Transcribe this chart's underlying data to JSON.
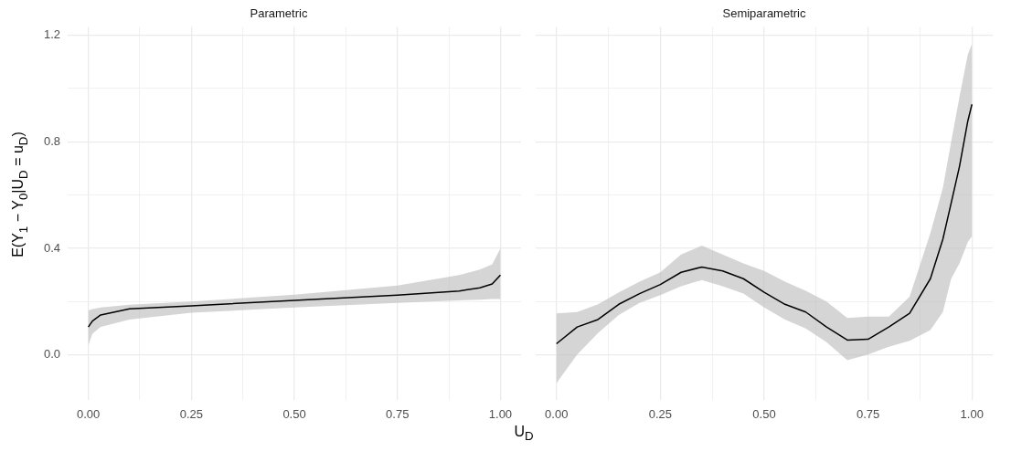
{
  "chart_data": [
    {
      "type": "line",
      "title": "Parametric",
      "ylabel": "E(Y$_{1}$ − Y$_{0}$|U$_{D}$ = u$_{D}$)",
      "xlabel": "U$_{D}$",
      "xlim": [
        -0.05,
        1.05
      ],
      "ylim": [
        -0.17,
        1.23
      ],
      "xticks": [
        {
          "value": 0,
          "label": "0.00"
        },
        {
          "value": 0.125,
          "label": null
        },
        {
          "value": 0.25,
          "label": "0.25"
        },
        {
          "value": 0.375,
          "label": null
        },
        {
          "value": 0.5,
          "label": "0.50"
        },
        {
          "value": 0.625,
          "label": null
        },
        {
          "value": 0.75,
          "label": "0.75"
        },
        {
          "value": 0.875,
          "label": null
        },
        {
          "value": 1,
          "label": "1.00"
        }
      ],
      "yticks": [
        {
          "value": 0,
          "label": "0.0"
        },
        {
          "value": 0.2,
          "label": null
        },
        {
          "value": 0.4,
          "label": "0.4"
        },
        {
          "value": 0.6,
          "label": null
        },
        {
          "value": 0.8,
          "label": "0.8"
        },
        {
          "value": 1.0,
          "label": null
        },
        {
          "value": 1.2,
          "label": "1.2"
        }
      ],
      "grid": true,
      "series": [
        {
          "color": "#000000",
          "x": [
            0,
            0.01,
            0.03,
            0.1,
            0.25,
            0.5,
            0.75,
            0.9,
            0.95,
            0.98,
            1.0
          ],
          "values": [
            0.105,
            0.127,
            0.15,
            0.173,
            0.184,
            0.205,
            0.224,
            0.24,
            0.252,
            0.266,
            0.3
          ],
          "lower": [
            0.036,
            0.08,
            0.105,
            0.133,
            0.158,
            0.178,
            0.195,
            0.205,
            0.207,
            0.21,
            0.21
          ],
          "upper": [
            0.167,
            0.172,
            0.178,
            0.188,
            0.2,
            0.226,
            0.26,
            0.3,
            0.32,
            0.34,
            0.4
          ]
        }
      ]
    },
    {
      "type": "line",
      "title": "Semiparametric",
      "xlim": [
        -0.05,
        1.05
      ],
      "ylim": [
        -0.17,
        1.23
      ],
      "tick_labels": "x",
      "xticks": [
        {
          "value": 0,
          "label": "0.00"
        },
        {
          "value": 0.125,
          "label": null
        },
        {
          "value": 0.25,
          "label": "0.25"
        },
        {
          "value": 0.375,
          "label": null
        },
        {
          "value": 0.5,
          "label": "0.50"
        },
        {
          "value": 0.625,
          "label": null
        },
        {
          "value": 0.75,
          "label": "0.75"
        },
        {
          "value": 0.875,
          "label": null
        },
        {
          "value": 1,
          "label": "1.00"
        }
      ],
      "yticks": [
        0,
        {
          "value": 0.2,
          "label": null
        },
        0.4,
        {
          "value": 0.6,
          "label": null
        },
        0.8,
        {
          "value": 1.0,
          "label": null
        },
        1.2
      ],
      "grid": true,
      "series": [
        {
          "color": "#000000",
          "x": [
            0,
            0.05,
            0.1,
            0.15,
            0.2,
            0.25,
            0.3,
            0.35,
            0.4,
            0.45,
            0.5,
            0.55,
            0.6,
            0.65,
            0.7,
            0.75,
            0.8,
            0.85,
            0.9,
            0.93,
            0.95,
            0.97,
            0.99,
            1.0
          ],
          "values": [
            0.042,
            0.105,
            0.133,
            0.19,
            0.23,
            0.264,
            0.31,
            0.33,
            0.315,
            0.286,
            0.235,
            0.19,
            0.161,
            0.105,
            0.056,
            0.059,
            0.105,
            0.156,
            0.286,
            0.434,
            0.57,
            0.707,
            0.877,
            0.94
          ],
          "lower": [
            -0.106,
            0.002,
            0.082,
            0.15,
            0.195,
            0.224,
            0.258,
            0.281,
            0.258,
            0.23,
            0.178,
            0.133,
            0.099,
            0.048,
            -0.02,
            0.002,
            0.031,
            0.053,
            0.093,
            0.161,
            0.286,
            0.343,
            0.423,
            0.445
          ],
          "upper": [
            0.156,
            0.161,
            0.19,
            0.235,
            0.275,
            0.31,
            0.377,
            0.41,
            0.377,
            0.343,
            0.315,
            0.275,
            0.241,
            0.2,
            0.139,
            0.144,
            0.144,
            0.218,
            0.457,
            0.627,
            0.8,
            0.968,
            1.127,
            1.167
          ]
        }
      ]
    }
  ]
}
